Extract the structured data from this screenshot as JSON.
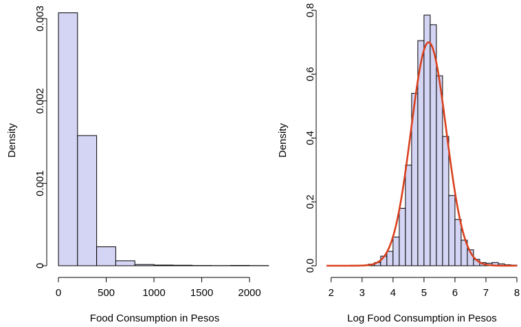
{
  "chart_data": [
    {
      "type": "bar",
      "title": "",
      "xlabel": "Food Consumption in Pesos",
      "ylabel": "Density",
      "xlim": [
        0,
        2050
      ],
      "ylim": [
        0,
        0.0031
      ],
      "x_ticks": [
        "0",
        "500",
        "1000",
        "1500",
        "2000"
      ],
      "x_tick_values": [
        0,
        500,
        1000,
        1500,
        2000
      ],
      "y_ticks": [
        "0",
        "0.001",
        "0.002",
        "0.003"
      ],
      "y_tick_values": [
        0,
        0.001,
        0.002,
        0.003
      ],
      "bar_fill": "#d4d4f4",
      "bins": [
        {
          "x0": 0,
          "x1": 200,
          "value": 0.00307
        },
        {
          "x0": 200,
          "x1": 400,
          "value": 0.00158
        },
        {
          "x0": 400,
          "x1": 600,
          "value": 0.00023
        },
        {
          "x0": 600,
          "x1": 800,
          "value": 6e-05
        },
        {
          "x0": 800,
          "x1": 1000,
          "value": 1.5e-05
        },
        {
          "x0": 1000,
          "x1": 1200,
          "value": 8e-06
        },
        {
          "x0": 1200,
          "x1": 1400,
          "value": 6e-06
        },
        {
          "x0": 1400,
          "x1": 1600,
          "value": 3e-06
        },
        {
          "x0": 1600,
          "x1": 1800,
          "value": 2e-06
        },
        {
          "x0": 1800,
          "x1": 2000,
          "value": 4e-06
        },
        {
          "x0": 2000,
          "x1": 2200,
          "value": 2e-06
        }
      ]
    },
    {
      "type": "bar",
      "title": "",
      "xlabel": "Log Food Consumption in Pesos",
      "ylabel": "Density",
      "xlim": [
        1.85,
        8.0
      ],
      "ylim": [
        0,
        0.8
      ],
      "x_ticks": [
        "2",
        "3",
        "4",
        "5",
        "6",
        "7",
        "8"
      ],
      "x_tick_values": [
        2,
        3,
        4,
        5,
        6,
        7,
        8
      ],
      "y_ticks": [
        "0.0",
        "0.2",
        "0.4",
        "0.6",
        "0.8"
      ],
      "y_tick_values": [
        0,
        0.2,
        0.4,
        0.6,
        0.8
      ],
      "bar_fill": "#d4d4f4",
      "curve_color": "#d9401e",
      "density_curve": {
        "type": "normal",
        "mean": 5.15,
        "sd": 0.57
      },
      "bins": [
        {
          "x0": 3.2,
          "x1": 3.4,
          "value": 0.005
        },
        {
          "x0": 3.4,
          "x1": 3.6,
          "value": 0.01
        },
        {
          "x0": 3.6,
          "x1": 3.8,
          "value": 0.03
        },
        {
          "x0": 3.8,
          "x1": 4.0,
          "value": 0.045
        },
        {
          "x0": 4.0,
          "x1": 4.2,
          "value": 0.09
        },
        {
          "x0": 4.2,
          "x1": 4.4,
          "value": 0.18
        },
        {
          "x0": 4.4,
          "x1": 4.6,
          "value": 0.315
        },
        {
          "x0": 4.6,
          "x1": 4.8,
          "value": 0.54
        },
        {
          "x0": 4.8,
          "x1": 5.0,
          "value": 0.705
        },
        {
          "x0": 5.0,
          "x1": 5.2,
          "value": 0.785
        },
        {
          "x0": 5.2,
          "x1": 5.4,
          "value": 0.755
        },
        {
          "x0": 5.4,
          "x1": 5.6,
          "value": 0.595
        },
        {
          "x0": 5.6,
          "x1": 5.8,
          "value": 0.405
        },
        {
          "x0": 5.8,
          "x1": 6.0,
          "value": 0.22
        },
        {
          "x0": 6.0,
          "x1": 6.2,
          "value": 0.145
        },
        {
          "x0": 6.2,
          "x1": 6.4,
          "value": 0.08
        },
        {
          "x0": 6.4,
          "x1": 6.6,
          "value": 0.05
        },
        {
          "x0": 6.6,
          "x1": 6.8,
          "value": 0.02
        },
        {
          "x0": 6.8,
          "x1": 7.0,
          "value": 0.01
        },
        {
          "x0": 7.0,
          "x1": 7.2,
          "value": 0.008
        },
        {
          "x0": 7.2,
          "x1": 7.4,
          "value": 0.01
        },
        {
          "x0": 7.4,
          "x1": 7.6,
          "value": 0.006
        },
        {
          "x0": 7.6,
          "x1": 7.8,
          "value": 0.003
        },
        {
          "x0": 7.8,
          "x1": 8.0,
          "value": 0.002
        }
      ]
    }
  ]
}
